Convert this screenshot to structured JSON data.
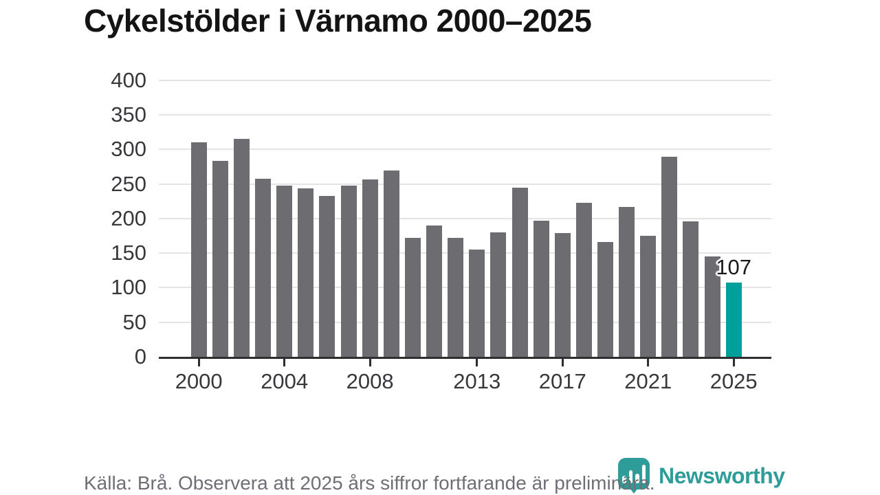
{
  "title": "Cykelstölder i Värnamo 2000–2025",
  "chart_data": {
    "type": "bar",
    "title": "Cykelstölder i Värnamo 2000–2025",
    "categories": [
      2000,
      2001,
      2002,
      2003,
      2004,
      2005,
      2006,
      2007,
      2008,
      2009,
      2010,
      2011,
      2012,
      2013,
      2014,
      2015,
      2016,
      2017,
      2018,
      2019,
      2020,
      2021,
      2022,
      2023,
      2024,
      2025
    ],
    "values": [
      310,
      283,
      315,
      258,
      248,
      244,
      233,
      248,
      257,
      269,
      172,
      190,
      172,
      155,
      180,
      245,
      197,
      179,
      223,
      166,
      217,
      175,
      289,
      196,
      145,
      107
    ],
    "xlabel": "",
    "ylabel": "",
    "ylim": [
      0,
      400
    ],
    "yticks": [
      0,
      50,
      100,
      150,
      200,
      250,
      300,
      350,
      400
    ],
    "xticks": [
      2000,
      2004,
      2008,
      2013,
      2017,
      2021,
      2025
    ],
    "grid": true,
    "legend": "none",
    "bar_color": "#6C6C71",
    "highlight": {
      "year": 2025,
      "value": 107,
      "label": "107",
      "color": "#00A09A"
    }
  },
  "footer": {
    "source_note": "Källa: Brå. Observera att 2025 års siffror fortfarande är preliminära."
  },
  "branding": {
    "logo_text": "Newsworthy",
    "logo_icon": "newsworthy-pin-barchart-icon",
    "brand_color": "#2E9D99"
  }
}
